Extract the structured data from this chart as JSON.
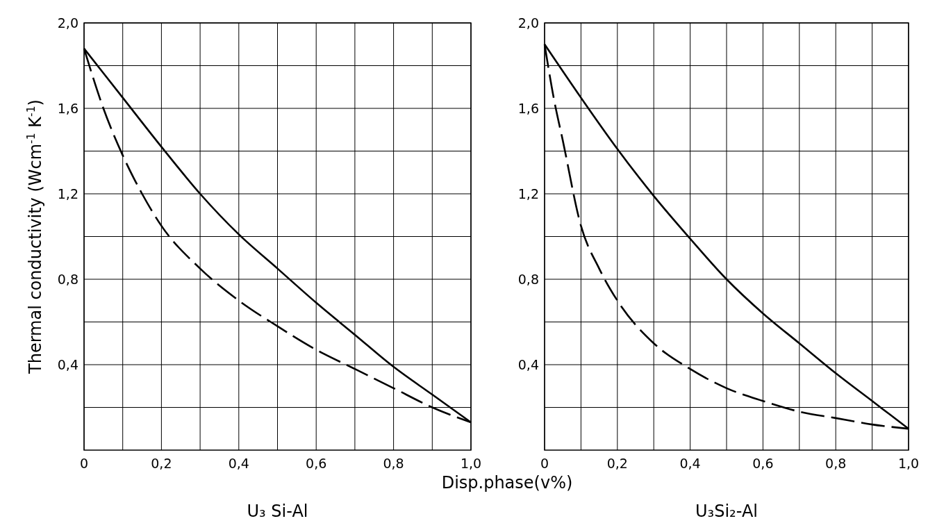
{
  "chart_data": [
    {
      "type": "line",
      "title": "U₃ Si-Al",
      "xlabel": "Disp.phase(v%)",
      "ylabel": "Thermal conductivity (Wcm$^{-1}$ K$^{-1}$)",
      "xlim": [
        0,
        1
      ],
      "ylim": [
        0,
        2
      ],
      "xticks": [
        0,
        {
          "value": 0.1,
          "label": null
        },
        {
          "value": 0.2,
          "label": "0,2"
        },
        {
          "value": 0.3,
          "label": null
        },
        {
          "value": 0.4,
          "label": "0,4"
        },
        {
          "value": 0.5,
          "label": null
        },
        {
          "value": 0.6,
          "label": "0,6"
        },
        {
          "value": 0.7,
          "label": null
        },
        {
          "value": 0.8,
          "label": "0,8"
        },
        {
          "value": 0.9,
          "label": null
        },
        {
          "value": 1,
          "label": "1,0"
        }
      ],
      "yticks": [
        {
          "value": 0.2,
          "label": null
        },
        {
          "value": 0.4,
          "label": "0,4"
        },
        {
          "value": 0.6,
          "label": null
        },
        {
          "value": 0.8,
          "label": "0,8"
        },
        {
          "value": 1,
          "label": null
        },
        {
          "value": 1.2,
          "label": "1,2"
        },
        {
          "value": 1.4,
          "label": null
        },
        {
          "value": 1.6,
          "label": "1,6"
        },
        {
          "value": 1.8,
          "label": null
        },
        {
          "value": 2,
          "label": "2,0"
        }
      ],
      "grid": true,
      "series": [
        {
          "color": "#000000",
          "line_style": "solid",
          "x": [
            0,
            0.1,
            0.2,
            0.3,
            0.4,
            0.5,
            0.6,
            0.7,
            0.8,
            0.9,
            1
          ],
          "values": [
            1.88,
            1.65,
            1.42,
            1.2,
            1.01,
            0.85,
            0.69,
            0.54,
            0.39,
            0.26,
            0.13
          ]
        },
        {
          "color": "#000000",
          "line_style": "dashed",
          "x": [
            0,
            0.05,
            0.1,
            0.15,
            0.2,
            0.3,
            0.4,
            0.5,
            0.6,
            0.7,
            0.8,
            0.9,
            1
          ],
          "values": [
            1.88,
            1.6,
            1.38,
            1.2,
            1.05,
            0.85,
            0.7,
            0.58,
            0.47,
            0.38,
            0.29,
            0.2,
            0.13
          ]
        }
      ]
    },
    {
      "type": "line",
      "title": "U₃Si₂-Al",
      "xlim": [
        0,
        1
      ],
      "ylim": [
        0,
        2
      ],
      "xticks": [
        0,
        {
          "value": 0.1,
          "label": null
        },
        {
          "value": 0.2,
          "label": "0,2"
        },
        {
          "value": 0.3,
          "label": null
        },
        {
          "value": 0.4,
          "label": "0,4"
        },
        {
          "value": 0.5,
          "label": null
        },
        {
          "value": 0.6,
          "label": "0,6"
        },
        {
          "value": 0.7,
          "label": null
        },
        {
          "value": 0.8,
          "label": "0,8"
        },
        {
          "value": 0.9,
          "label": null
        },
        {
          "value": 1,
          "label": "1,0"
        }
      ],
      "yticks": [
        {
          "value": 0.2,
          "label": null
        },
        {
          "value": 0.4,
          "label": "0,4"
        },
        {
          "value": 0.6,
          "label": null
        },
        {
          "value": 0.8,
          "label": "0,8"
        },
        {
          "value": 1,
          "label": null
        },
        {
          "value": 1.2,
          "label": "1,2"
        },
        {
          "value": 1.4,
          "label": null
        },
        {
          "value": 1.6,
          "label": "1,6"
        },
        {
          "value": 1.8,
          "label": null
        },
        {
          "value": 2,
          "label": "2,0"
        }
      ],
      "grid": true,
      "series": [
        {
          "color": "#000000",
          "line_style": "solid",
          "x": [
            0,
            0.1,
            0.2,
            0.3,
            0.4,
            0.5,
            0.6,
            0.7,
            0.8,
            0.9,
            1
          ],
          "values": [
            1.9,
            1.65,
            1.41,
            1.19,
            0.99,
            0.8,
            0.64,
            0.5,
            0.36,
            0.23,
            0.1
          ]
        },
        {
          "color": "#000000",
          "line_style": "dashed",
          "x": [
            0,
            0.025,
            0.05,
            0.1,
            0.15,
            0.2,
            0.3,
            0.4,
            0.5,
            0.6,
            0.7,
            0.8,
            0.9,
            1
          ],
          "values": [
            1.9,
            1.65,
            1.45,
            1.05,
            0.85,
            0.7,
            0.5,
            0.38,
            0.29,
            0.23,
            0.18,
            0.15,
            0.12,
            0.1
          ]
        }
      ]
    }
  ]
}
